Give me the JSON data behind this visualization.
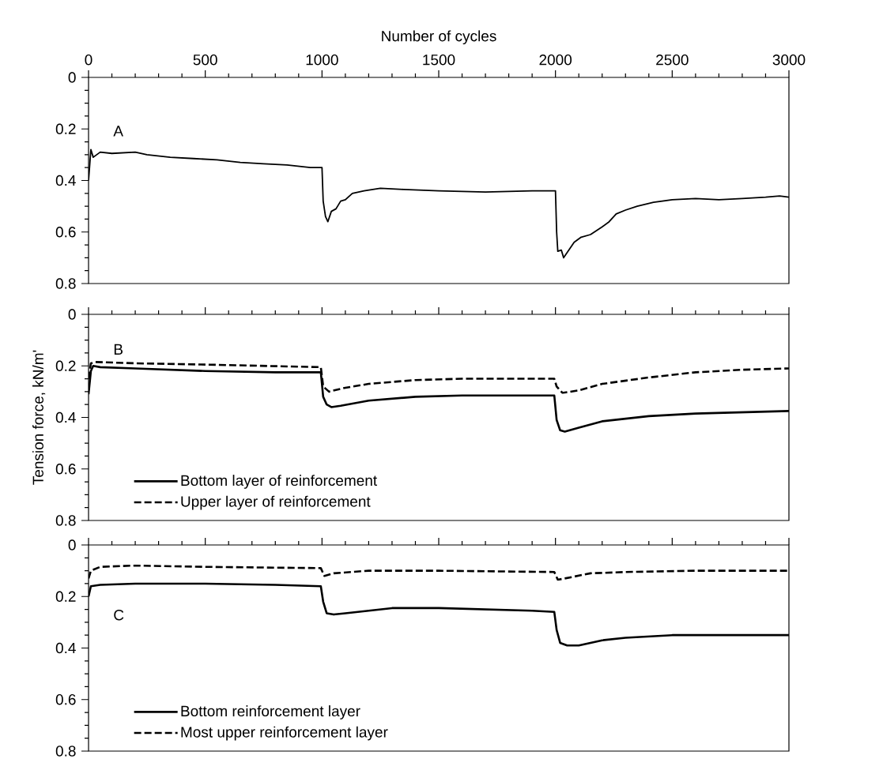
{
  "chart_data": [
    {
      "type": "line",
      "xlabel": "Number of cycles",
      "annotations": [
        "A"
      ],
      "xlim": [
        0,
        3000
      ],
      "xticks": [
        0,
        500,
        1000,
        1500,
        2000,
        2500,
        3000
      ],
      "ylim": [
        0.8,
        0
      ],
      "yticks": [
        0,
        0.2,
        0.4,
        0.6,
        0.8
      ],
      "grid": false,
      "legend": false,
      "series": [
        {
          "color": "#000000",
          "line_style": "solid",
          "x": [
            0,
            10,
            20,
            50,
            100,
            200,
            250,
            350,
            450,
            550,
            650,
            750,
            850,
            950,
            1000,
            1005,
            1015,
            1025,
            1040,
            1060,
            1080,
            1100,
            1130,
            1180,
            1250,
            1350,
            1500,
            1700,
            1900,
            2000,
            2005,
            2010,
            2025,
            2035,
            2050,
            2080,
            2110,
            2150,
            2200,
            2230,
            2260,
            2300,
            2350,
            2420,
            2500,
            2600,
            2700,
            2800,
            2900,
            2960,
            3000
          ],
          "values": [
            0.4,
            0.28,
            0.31,
            0.29,
            0.295,
            0.29,
            0.3,
            0.31,
            0.315,
            0.32,
            0.33,
            0.335,
            0.34,
            0.35,
            0.35,
            0.48,
            0.54,
            0.56,
            0.52,
            0.51,
            0.48,
            0.475,
            0.45,
            0.44,
            0.43,
            0.435,
            0.44,
            0.445,
            0.44,
            0.44,
            0.6,
            0.675,
            0.67,
            0.7,
            0.68,
            0.64,
            0.62,
            0.61,
            0.58,
            0.56,
            0.53,
            0.515,
            0.5,
            0.485,
            0.475,
            0.47,
            0.475,
            0.47,
            0.465,
            0.46,
            0.465
          ]
        }
      ]
    },
    {
      "type": "line",
      "ylabel": "Tension force, kN/m'",
      "annotations": [
        "B"
      ],
      "xlim": [
        0,
        3000
      ],
      "xticks": [
        0,
        500,
        1000,
        1500,
        2000,
        2500,
        3000
      ],
      "ylim": [
        0.8,
        0
      ],
      "yticks": [
        0,
        0.2,
        0.4,
        0.6,
        0.8
      ],
      "grid": false,
      "legend": "bottom left",
      "tick_labels": "y",
      "series": [
        {
          "name": "Bottom layer of reinforcement",
          "color": "#000000",
          "line_style": "solid",
          "x": [
            0,
            10,
            20,
            50,
            200,
            500,
            800,
            995,
            1005,
            1020,
            1040,
            1080,
            1200,
            1400,
            1600,
            1800,
            1995,
            2005,
            2020,
            2040,
            2100,
            2200,
            2400,
            2600,
            2800,
            3000
          ],
          "values": [
            0.31,
            0.22,
            0.2,
            0.205,
            0.21,
            0.22,
            0.225,
            0.225,
            0.32,
            0.35,
            0.36,
            0.355,
            0.335,
            0.32,
            0.315,
            0.315,
            0.315,
            0.41,
            0.45,
            0.455,
            0.44,
            0.415,
            0.395,
            0.385,
            0.38,
            0.375
          ]
        },
        {
          "name": "Upper layer of reinforcement",
          "color": "#000000",
          "line_style": "dashed",
          "x": [
            0,
            10,
            30,
            200,
            500,
            995,
            1005,
            1030,
            1100,
            1200,
            1400,
            1600,
            1800,
            1995,
            2005,
            2030,
            2100,
            2200,
            2400,
            2600,
            2800,
            3000
          ],
          "values": [
            0.25,
            0.19,
            0.185,
            0.19,
            0.195,
            0.205,
            0.28,
            0.3,
            0.285,
            0.27,
            0.255,
            0.25,
            0.25,
            0.25,
            0.28,
            0.305,
            0.295,
            0.27,
            0.245,
            0.225,
            0.215,
            0.21
          ]
        }
      ]
    },
    {
      "type": "line",
      "annotations": [
        "C"
      ],
      "xlim": [
        0,
        3000
      ],
      "xticks": [
        0,
        500,
        1000,
        1500,
        2000,
        2500,
        3000
      ],
      "ylim": [
        0.8,
        0
      ],
      "yticks": [
        0,
        0.2,
        0.4,
        0.6,
        0.8
      ],
      "grid": false,
      "legend": "bottom left",
      "tick_labels": "y",
      "series": [
        {
          "name": "Bottom reinforcement layer",
          "color": "#000000",
          "line_style": "solid",
          "x": [
            0,
            10,
            50,
            200,
            500,
            800,
            995,
            1005,
            1020,
            1050,
            1100,
            1200,
            1300,
            1500,
            1700,
            1900,
            1995,
            2005,
            2020,
            2050,
            2100,
            2200,
            2300,
            2500,
            2700,
            3000
          ],
          "values": [
            0.2,
            0.16,
            0.155,
            0.15,
            0.15,
            0.155,
            0.16,
            0.22,
            0.265,
            0.27,
            0.265,
            0.255,
            0.245,
            0.245,
            0.25,
            0.255,
            0.26,
            0.33,
            0.38,
            0.39,
            0.39,
            0.37,
            0.36,
            0.35,
            0.35,
            0.35
          ]
        },
        {
          "name": "Most upper reinforcement layer",
          "color": "#000000",
          "line_style": "dashed",
          "x": [
            0,
            10,
            50,
            200,
            500,
            995,
            1010,
            1050,
            1200,
            1500,
            1995,
            2010,
            2040,
            2150,
            2300,
            2600,
            3000
          ],
          "values": [
            0.13,
            0.1,
            0.085,
            0.08,
            0.085,
            0.09,
            0.12,
            0.11,
            0.1,
            0.1,
            0.105,
            0.135,
            0.13,
            0.11,
            0.105,
            0.1,
            0.1
          ]
        }
      ]
    }
  ]
}
